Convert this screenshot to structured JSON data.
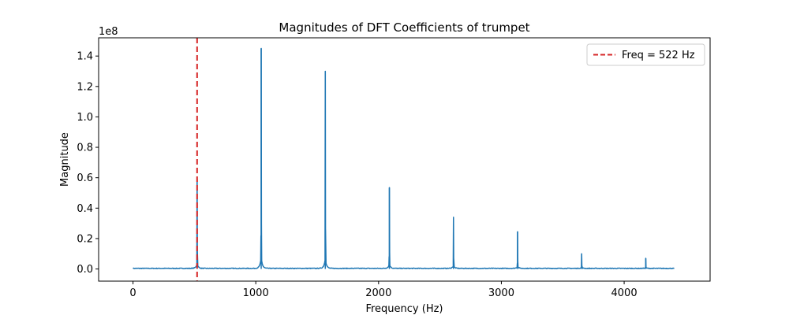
{
  "chart_data": {
    "type": "line",
    "title": "Magnitudes of DFT Coefficients of trumpet",
    "xlabel": "Frequency (Hz)",
    "ylabel": "Magnitude",
    "y_offset_text": "1e8",
    "y_scale": 100000000,
    "xlim": [
      -280,
      4700
    ],
    "ylim": [
      -0.08,
      1.52
    ],
    "x_ticks": [
      0,
      1000,
      2000,
      3000,
      4000
    ],
    "x_tick_labels": [
      "0",
      "1000",
      "2000",
      "3000",
      "4000"
    ],
    "y_ticks": [
      0.0,
      0.2,
      0.4,
      0.6,
      0.8,
      1.0,
      1.2,
      1.4
    ],
    "y_tick_labels": [
      "0.0",
      "0.2",
      "0.4",
      "0.6",
      "0.8",
      "1.0",
      "1.2",
      "1.4"
    ],
    "x_range": [
      0,
      4410
    ],
    "series": [
      {
        "color": "#1f77b4",
        "peaks": [
          {
            "x": 522,
            "y": 0.59
          },
          {
            "x": 1044,
            "y": 1.45
          },
          {
            "x": 1566,
            "y": 1.3
          },
          {
            "x": 2088,
            "y": 0.535
          },
          {
            "x": 2610,
            "y": 0.34
          },
          {
            "x": 3132,
            "y": 0.245
          },
          {
            "x": 3654,
            "y": 0.1
          },
          {
            "x": 4176,
            "y": 0.07
          }
        ]
      }
    ],
    "vline": {
      "x": 522,
      "color": "#d62728",
      "style": "dashed",
      "label": "Freq = 522 Hz"
    },
    "grid": false,
    "legend_position": "upper-right"
  }
}
